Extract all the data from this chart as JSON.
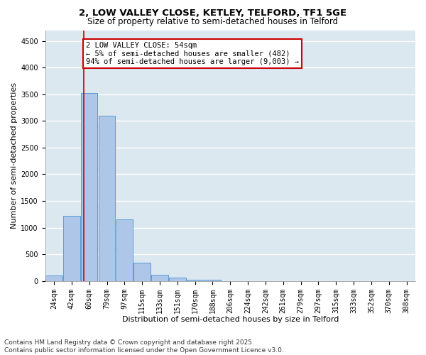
{
  "title_line1": "2, LOW VALLEY CLOSE, KETLEY, TELFORD, TF1 5GE",
  "title_line2": "Size of property relative to semi-detached houses in Telford",
  "xlabel": "Distribution of semi-detached houses by size in Telford",
  "ylabel": "Number of semi-detached properties",
  "categories": [
    "24sqm",
    "42sqm",
    "60sqm",
    "79sqm",
    "97sqm",
    "115sqm",
    "133sqm",
    "151sqm",
    "170sqm",
    "188sqm",
    "206sqm",
    "224sqm",
    "242sqm",
    "261sqm",
    "279sqm",
    "297sqm",
    "315sqm",
    "333sqm",
    "352sqm",
    "370sqm",
    "388sqm"
  ],
  "values": [
    100,
    1220,
    3520,
    3100,
    1150,
    340,
    115,
    60,
    30,
    20,
    0,
    0,
    0,
    0,
    0,
    0,
    0,
    0,
    0,
    0,
    0
  ],
  "bar_color": "#aec6e8",
  "bar_edge_color": "#5b9bd5",
  "background_color": "#dce8f0",
  "grid_color": "#ffffff",
  "annotation_text_line1": "2 LOW VALLEY CLOSE: 54sqm",
  "annotation_text_line2": "← 5% of semi-detached houses are smaller (482)",
  "annotation_text_line3": "94% of semi-detached houses are larger (9,003) →",
  "annotation_box_color": "#ffffff",
  "annotation_box_edge": "#cc0000",
  "vline_color": "#cc0000",
  "ylim": [
    0,
    4700
  ],
  "yticks": [
    0,
    500,
    1000,
    1500,
    2000,
    2500,
    3000,
    3500,
    4000,
    4500
  ],
  "footnote_line1": "Contains HM Land Registry data © Crown copyright and database right 2025.",
  "footnote_line2": "Contains public sector information licensed under the Open Government Licence v3.0.",
  "title_fontsize": 9.5,
  "subtitle_fontsize": 8.5,
  "axis_label_fontsize": 8,
  "tick_fontsize": 7,
  "annotation_fontsize": 7.5,
  "footnote_fontsize": 6.5
}
